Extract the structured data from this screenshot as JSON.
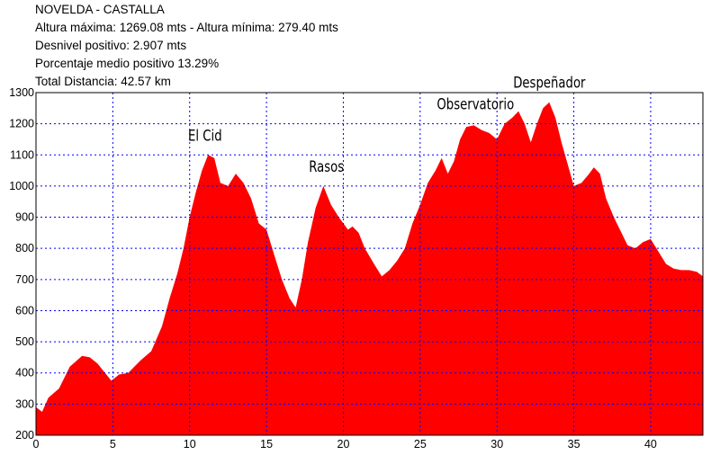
{
  "header": {
    "title": "NOVELDA - CASTALLA",
    "line1": "Altura máxima: 1269.08 mts - Altura mínima: 279.40 mts",
    "line2": "Desnivel positivo: 2.907 mts",
    "line3": "Porcentaje medio positivo 13.29%",
    "line4": "Total Distancia: 42.57 km"
  },
  "chart_data": {
    "type": "area",
    "fill_color": "#ff0000",
    "grid_color": "#0000ff",
    "grid": true,
    "xlim": [
      0,
      43.4
    ],
    "ylim": [
      200,
      1300
    ],
    "x_ticks": [
      "0",
      "5",
      "10",
      "15",
      "20",
      "25",
      "30",
      "35",
      "40"
    ],
    "y_ticks": [
      "200",
      "300",
      "400",
      "500",
      "600",
      "700",
      "800",
      "900",
      "1000",
      "1100",
      "1200",
      "1300"
    ],
    "annotations": [
      {
        "label": "El Cid",
        "x": 11.0,
        "y": 1100
      },
      {
        "label": "Rasos",
        "x": 18.9,
        "y": 1000
      },
      {
        "label": "Observatorio",
        "x": 28.6,
        "y": 1200
      },
      {
        "label": "Despeñador",
        "x": 33.4,
        "y": 1269
      }
    ],
    "series": [
      {
        "points": [
          [
            0,
            290
          ],
          [
            0.4,
            275
          ],
          [
            0.8,
            320
          ],
          [
            1.5,
            350
          ],
          [
            2.2,
            420
          ],
          [
            3.0,
            455
          ],
          [
            3.5,
            450
          ],
          [
            4.0,
            430
          ],
          [
            4.5,
            400
          ],
          [
            4.9,
            375
          ],
          [
            5.4,
            395
          ],
          [
            6.0,
            400
          ],
          [
            6.8,
            440
          ],
          [
            7.5,
            470
          ],
          [
            8.2,
            550
          ],
          [
            8.7,
            640
          ],
          [
            9.2,
            720
          ],
          [
            9.6,
            800
          ],
          [
            10.0,
            900
          ],
          [
            10.4,
            980
          ],
          [
            10.8,
            1050
          ],
          [
            11.2,
            1100
          ],
          [
            11.6,
            1090
          ],
          [
            12.0,
            1010
          ],
          [
            12.5,
            1000
          ],
          [
            13.0,
            1040
          ],
          [
            13.5,
            1010
          ],
          [
            14.0,
            960
          ],
          [
            14.5,
            880
          ],
          [
            15.0,
            860
          ],
          [
            15.5,
            780
          ],
          [
            16.0,
            700
          ],
          [
            16.5,
            640
          ],
          [
            16.9,
            610
          ],
          [
            17.3,
            700
          ],
          [
            17.7,
            820
          ],
          [
            18.2,
            930
          ],
          [
            18.7,
            1000
          ],
          [
            19.2,
            940
          ],
          [
            19.7,
            900
          ],
          [
            20.3,
            860
          ],
          [
            20.6,
            870
          ],
          [
            21.0,
            850
          ],
          [
            21.4,
            800
          ],
          [
            22.0,
            750
          ],
          [
            22.5,
            710
          ],
          [
            23.0,
            730
          ],
          [
            23.5,
            760
          ],
          [
            24.0,
            800
          ],
          [
            24.5,
            880
          ],
          [
            25.0,
            940
          ],
          [
            25.5,
            1010
          ],
          [
            26.0,
            1050
          ],
          [
            26.4,
            1090
          ],
          [
            26.8,
            1040
          ],
          [
            27.2,
            1080
          ],
          [
            27.6,
            1150
          ],
          [
            28.0,
            1190
          ],
          [
            28.5,
            1195
          ],
          [
            29.0,
            1180
          ],
          [
            29.5,
            1170
          ],
          [
            30.0,
            1150
          ],
          [
            30.5,
            1200
          ],
          [
            31.0,
            1220
          ],
          [
            31.4,
            1240
          ],
          [
            31.8,
            1200
          ],
          [
            32.2,
            1140
          ],
          [
            32.6,
            1200
          ],
          [
            33.0,
            1250
          ],
          [
            33.4,
            1269
          ],
          [
            33.8,
            1220
          ],
          [
            34.2,
            1140
          ],
          [
            34.6,
            1070
          ],
          [
            35.0,
            1000
          ],
          [
            35.5,
            1010
          ],
          [
            36.0,
            1040
          ],
          [
            36.3,
            1060
          ],
          [
            36.7,
            1040
          ],
          [
            37.1,
            960
          ],
          [
            37.6,
            900
          ],
          [
            38.0,
            860
          ],
          [
            38.5,
            810
          ],
          [
            39.0,
            800
          ],
          [
            39.5,
            820
          ],
          [
            40.0,
            830
          ],
          [
            40.5,
            790
          ],
          [
            41.0,
            750
          ],
          [
            41.5,
            735
          ],
          [
            42.0,
            730
          ],
          [
            42.5,
            730
          ],
          [
            43.0,
            725
          ],
          [
            43.4,
            710
          ]
        ]
      }
    ]
  }
}
